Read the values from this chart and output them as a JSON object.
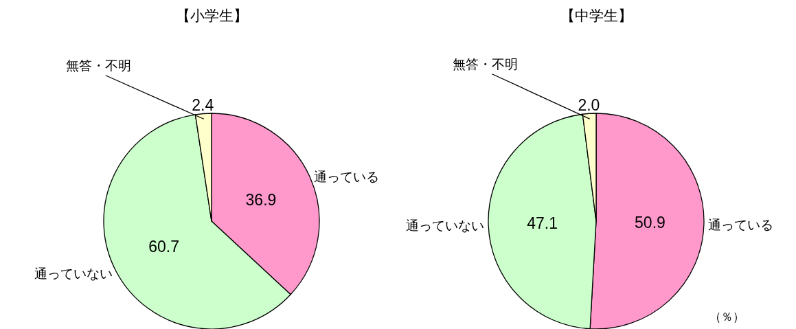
{
  "chart_data": [
    {
      "type": "pie",
      "title": "【小学生】",
      "categories": [
        "通っている",
        "通っていない",
        "無答・不明"
      ],
      "values": [
        36.9,
        60.7,
        2.4
      ],
      "colors": [
        "#ff99cc",
        "#ccffcc",
        "#ffffcc"
      ],
      "data_labels": true
    },
    {
      "type": "pie",
      "title": "【中学生】",
      "categories": [
        "通っている",
        "通っていない",
        "無答・不明"
      ],
      "values": [
        50.9,
        47.1,
        2.0
      ],
      "value_labels": [
        "50.9",
        "47.1",
        "2.0"
      ],
      "colors": [
        "#ff99cc",
        "#ccffcc",
        "#ffffcc"
      ],
      "annotations": [
        "（％）"
      ]
    }
  ]
}
